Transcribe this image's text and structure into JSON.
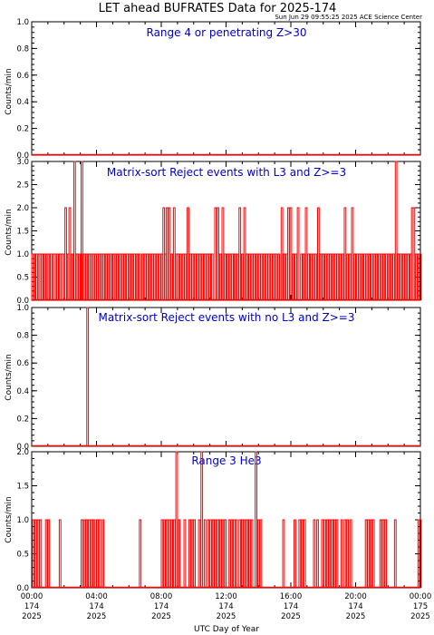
{
  "header": {
    "title": "LET ahead BUFRATES Data for 2025-174",
    "timestamp": "Sun Jun 29 09:55:25 2025 ACE Science Center"
  },
  "xaxis": {
    "label": "UTC Day of Year",
    "range_hours": [
      0,
      24
    ],
    "ticks": [
      {
        "hours": 0,
        "lines": [
          "00:00",
          "174",
          "2025"
        ]
      },
      {
        "hours": 4,
        "lines": [
          "04:00",
          "174",
          "2025"
        ]
      },
      {
        "hours": 8,
        "lines": [
          "08:00",
          "174",
          "2025"
        ]
      },
      {
        "hours": 12,
        "lines": [
          "12:00",
          "174",
          "2025"
        ]
      },
      {
        "hours": 16,
        "lines": [
          "16:00",
          "174",
          "2025"
        ]
      },
      {
        "hours": 20,
        "lines": [
          "20:00",
          "174",
          "2025"
        ]
      },
      {
        "hours": 24,
        "lines": [
          "00:00",
          "175",
          "2025"
        ]
      }
    ]
  },
  "colors": {
    "trace": "#ff0000",
    "panel_title": "#0000cc",
    "axis": "#000000"
  },
  "chart_data": [
    {
      "type": "line",
      "title": "Range 4 or   penetrating Z>30",
      "ylabel": "Counts/min",
      "ylim": [
        0,
        1.0
      ],
      "yticks": [
        "0.0",
        "0.2",
        "0.4",
        "0.6",
        "0.8",
        "1.0"
      ],
      "spikes": []
    },
    {
      "type": "line",
      "title": "Matrix-sort Reject events with L3 and Z>=3",
      "ylabel": "Counts/min",
      "ylim": [
        0,
        3.0
      ],
      "yticks": [
        "0.0",
        "0.5",
        "1.0",
        "1.5",
        "2.0",
        "2.5",
        "3.0"
      ],
      "spikes": [
        [
          0.0,
          1
        ],
        [
          0.1,
          1
        ],
        [
          0.25,
          1
        ],
        [
          0.4,
          1
        ],
        [
          0.5,
          1
        ],
        [
          0.6,
          1
        ],
        [
          0.75,
          1
        ],
        [
          0.9,
          1
        ],
        [
          1.0,
          1
        ],
        [
          1.15,
          1
        ],
        [
          1.3,
          1
        ],
        [
          1.4,
          1
        ],
        [
          1.55,
          1
        ],
        [
          1.7,
          1
        ],
        [
          1.8,
          1
        ],
        [
          1.9,
          1
        ],
        [
          2.05,
          2
        ],
        [
          2.2,
          1
        ],
        [
          2.3,
          2
        ],
        [
          2.45,
          1
        ],
        [
          2.6,
          3
        ],
        [
          2.75,
          1
        ],
        [
          2.9,
          1
        ],
        [
          3.0,
          1
        ],
        [
          3.05,
          3
        ],
        [
          3.2,
          1
        ],
        [
          3.35,
          1
        ],
        [
          3.5,
          1
        ],
        [
          3.6,
          1
        ],
        [
          3.75,
          1
        ],
        [
          3.9,
          1
        ],
        [
          4.0,
          1
        ],
        [
          4.15,
          1
        ],
        [
          4.3,
          1
        ],
        [
          4.4,
          1
        ],
        [
          4.55,
          1
        ],
        [
          4.7,
          1
        ],
        [
          4.85,
          1
        ],
        [
          5.0,
          1
        ],
        [
          5.1,
          1
        ],
        [
          5.25,
          1
        ],
        [
          5.4,
          1
        ],
        [
          5.55,
          1
        ],
        [
          5.7,
          1
        ],
        [
          5.85,
          1
        ],
        [
          6.0,
          1
        ],
        [
          6.15,
          1
        ],
        [
          6.3,
          1
        ],
        [
          6.45,
          1
        ],
        [
          6.6,
          1
        ],
        [
          6.8,
          1
        ],
        [
          6.95,
          1
        ],
        [
          7.1,
          1
        ],
        [
          7.25,
          1
        ],
        [
          7.4,
          1
        ],
        [
          7.55,
          1
        ],
        [
          7.7,
          1
        ],
        [
          7.85,
          1
        ],
        [
          8.0,
          1
        ],
        [
          8.1,
          2
        ],
        [
          8.2,
          1
        ],
        [
          8.3,
          2
        ],
        [
          8.45,
          2
        ],
        [
          8.6,
          1
        ],
        [
          8.75,
          2
        ],
        [
          8.9,
          1
        ],
        [
          9.0,
          1
        ],
        [
          9.15,
          1
        ],
        [
          9.3,
          1
        ],
        [
          9.45,
          1
        ],
        [
          9.6,
          2
        ],
        [
          9.75,
          1
        ],
        [
          9.9,
          1
        ],
        [
          10.05,
          1
        ],
        [
          10.2,
          1
        ],
        [
          10.35,
          1
        ],
        [
          10.5,
          1
        ],
        [
          10.65,
          1
        ],
        [
          10.8,
          1
        ],
        [
          10.95,
          1
        ],
        [
          11.1,
          1
        ],
        [
          11.3,
          2
        ],
        [
          11.45,
          2
        ],
        [
          11.6,
          1
        ],
        [
          11.75,
          2
        ],
        [
          11.9,
          1
        ],
        [
          12.05,
          1
        ],
        [
          12.2,
          1
        ],
        [
          12.35,
          1
        ],
        [
          12.5,
          1
        ],
        [
          12.65,
          1
        ],
        [
          12.8,
          2
        ],
        [
          12.95,
          1
        ],
        [
          13.1,
          2
        ],
        [
          13.25,
          1
        ],
        [
          13.4,
          1
        ],
        [
          13.55,
          1
        ],
        [
          13.7,
          1
        ],
        [
          13.85,
          1
        ],
        [
          14.0,
          1
        ],
        [
          14.15,
          1
        ],
        [
          14.3,
          1
        ],
        [
          14.45,
          1
        ],
        [
          14.6,
          1
        ],
        [
          14.75,
          1
        ],
        [
          14.9,
          1
        ],
        [
          15.05,
          1
        ],
        [
          15.2,
          1
        ],
        [
          15.4,
          2
        ],
        [
          15.55,
          1
        ],
        [
          15.7,
          1
        ],
        [
          15.8,
          2
        ],
        [
          15.95,
          2
        ],
        [
          16.1,
          1
        ],
        [
          16.25,
          1
        ],
        [
          16.4,
          2
        ],
        [
          16.6,
          1
        ],
        [
          16.75,
          1
        ],
        [
          16.9,
          2
        ],
        [
          17.05,
          1
        ],
        [
          17.2,
          1
        ],
        [
          17.35,
          1
        ],
        [
          17.5,
          1
        ],
        [
          17.65,
          2
        ],
        [
          17.8,
          1
        ],
        [
          17.95,
          1
        ],
        [
          18.1,
          1
        ],
        [
          18.25,
          1
        ],
        [
          18.4,
          1
        ],
        [
          18.55,
          1
        ],
        [
          18.7,
          1
        ],
        [
          18.85,
          1
        ],
        [
          19.0,
          1
        ],
        [
          19.15,
          1
        ],
        [
          19.3,
          2
        ],
        [
          19.45,
          1
        ],
        [
          19.6,
          1
        ],
        [
          19.75,
          2
        ],
        [
          19.9,
          1
        ],
        [
          20.05,
          1
        ],
        [
          20.2,
          1
        ],
        [
          20.35,
          1
        ],
        [
          20.5,
          1
        ],
        [
          20.65,
          1
        ],
        [
          20.8,
          1
        ],
        [
          20.95,
          1
        ],
        [
          21.1,
          1
        ],
        [
          21.25,
          1
        ],
        [
          21.4,
          1
        ],
        [
          21.55,
          1
        ],
        [
          21.7,
          1
        ],
        [
          21.85,
          1
        ],
        [
          22.0,
          1
        ],
        [
          22.15,
          1
        ],
        [
          22.3,
          1
        ],
        [
          22.45,
          3
        ],
        [
          22.6,
          1
        ],
        [
          22.75,
          1
        ],
        [
          22.9,
          1
        ],
        [
          23.05,
          1
        ],
        [
          23.2,
          1
        ],
        [
          23.35,
          1
        ],
        [
          23.45,
          2
        ],
        [
          23.55,
          2
        ],
        [
          23.7,
          1
        ],
        [
          23.85,
          1
        ],
        [
          23.95,
          1
        ]
      ]
    },
    {
      "type": "line",
      "title": "Matrix-sort Reject events with no L3 and Z>=3",
      "ylabel": "Counts/min",
      "ylim": [
        0,
        1.0
      ],
      "yticks": [
        "0.0",
        "0.2",
        "0.4",
        "0.6",
        "0.8",
        "1.0"
      ],
      "spikes": [
        [
          3.4,
          1.05
        ]
      ]
    },
    {
      "type": "line",
      "title": "Range 3 He3",
      "ylabel": "Counts/min",
      "ylim": [
        0,
        2.0
      ],
      "yticks": [
        "0.0",
        "0.5",
        "1.0",
        "1.5",
        "2.0"
      ],
      "spikes": [
        [
          0.05,
          1
        ],
        [
          0.2,
          1
        ],
        [
          0.35,
          1
        ],
        [
          0.5,
          1
        ],
        [
          0.85,
          1
        ],
        [
          1.0,
          1
        ],
        [
          1.7,
          1
        ],
        [
          3.05,
          1
        ],
        [
          3.2,
          1
        ],
        [
          3.35,
          1
        ],
        [
          3.5,
          1
        ],
        [
          3.65,
          1
        ],
        [
          3.8,
          1
        ],
        [
          4.0,
          1
        ],
        [
          4.15,
          1
        ],
        [
          4.35,
          1
        ],
        [
          6.65,
          1
        ],
        [
          8.0,
          1
        ],
        [
          8.15,
          1
        ],
        [
          8.3,
          1
        ],
        [
          8.45,
          1
        ],
        [
          8.6,
          1
        ],
        [
          8.75,
          1
        ],
        [
          8.9,
          2
        ],
        [
          9.05,
          1
        ],
        [
          9.4,
          1
        ],
        [
          9.7,
          1
        ],
        [
          9.85,
          1
        ],
        [
          10.0,
          1
        ],
        [
          10.3,
          1
        ],
        [
          10.45,
          2
        ],
        [
          10.65,
          1
        ],
        [
          10.85,
          1
        ],
        [
          11.0,
          1
        ],
        [
          11.15,
          1
        ],
        [
          11.3,
          1
        ],
        [
          11.45,
          1
        ],
        [
          11.6,
          1
        ],
        [
          11.75,
          1
        ],
        [
          11.9,
          1
        ],
        [
          12.15,
          1
        ],
        [
          12.3,
          1
        ],
        [
          12.45,
          1
        ],
        [
          12.6,
          1
        ],
        [
          12.8,
          1
        ],
        [
          12.95,
          1
        ],
        [
          13.1,
          1
        ],
        [
          13.25,
          1
        ],
        [
          13.4,
          1
        ],
        [
          13.55,
          1
        ],
        [
          13.8,
          2
        ],
        [
          13.95,
          1
        ],
        [
          14.1,
          1
        ],
        [
          15.5,
          1
        ],
        [
          16.2,
          1
        ],
        [
          16.5,
          1
        ],
        [
          16.65,
          1
        ],
        [
          16.8,
          1
        ],
        [
          17.4,
          1
        ],
        [
          17.6,
          1
        ],
        [
          17.9,
          1
        ],
        [
          18.05,
          1
        ],
        [
          18.2,
          1
        ],
        [
          18.35,
          1
        ],
        [
          18.5,
          1
        ],
        [
          18.65,
          1
        ],
        [
          18.8,
          1
        ],
        [
          19.1,
          1
        ],
        [
          19.3,
          1
        ],
        [
          19.45,
          1
        ],
        [
          19.65,
          1
        ],
        [
          20.6,
          1
        ],
        [
          20.75,
          1
        ],
        [
          20.9,
          1
        ],
        [
          21.05,
          1
        ],
        [
          21.5,
          1
        ],
        [
          21.65,
          1
        ],
        [
          21.8,
          1
        ],
        [
          22.4,
          1
        ],
        [
          23.85,
          1
        ],
        [
          23.95,
          1
        ]
      ]
    }
  ]
}
